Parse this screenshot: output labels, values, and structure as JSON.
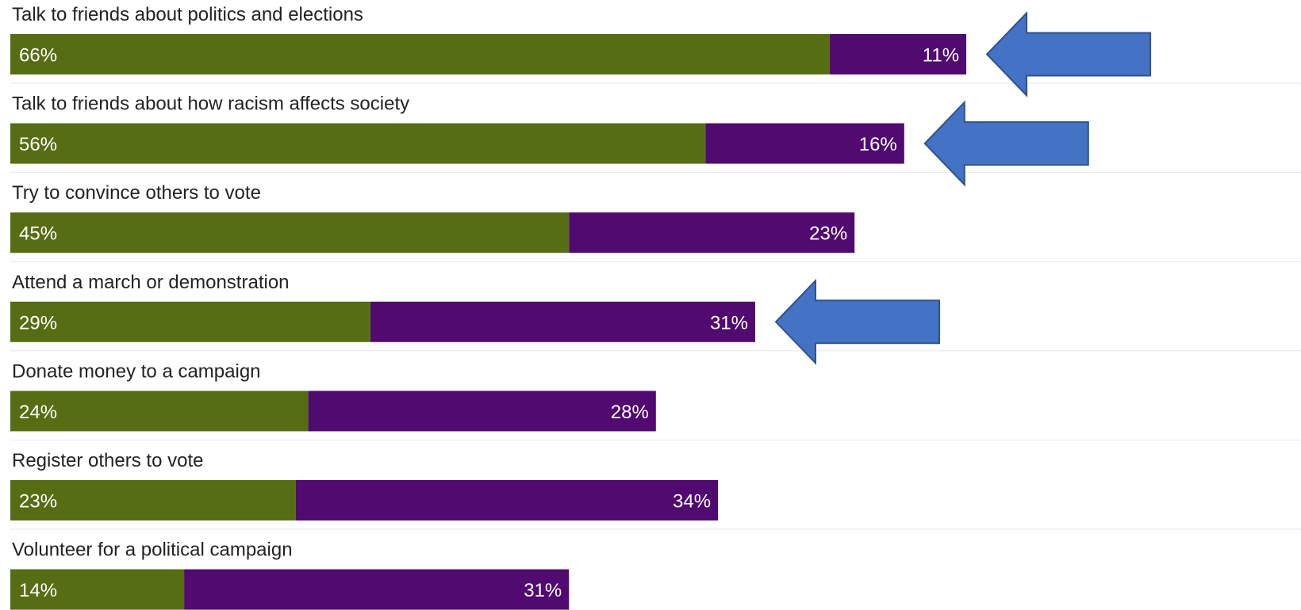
{
  "chart_data": {
    "type": "bar",
    "orientation": "horizontal",
    "stacked": true,
    "categories": [
      "Talk to friends about politics and elections",
      "Talk to friends about how racism affects society",
      "Try to convince others to vote",
      "Attend a march or demonstration",
      "Donate money to a campaign",
      "Register others to vote",
      "Volunteer for a political campaign"
    ],
    "series": [
      {
        "values": [
          66,
          56,
          45,
          29,
          24,
          23,
          14
        ],
        "labels": [
          "66%",
          "56%",
          "45%",
          "29%",
          "24%",
          "23%",
          "14%"
        ]
      },
      {
        "values": [
          11,
          16,
          23,
          31,
          28,
          34,
          31
        ],
        "labels": [
          "11%",
          "16%",
          "23%",
          "31%",
          "28%",
          "34%",
          "31%"
        ]
      }
    ],
    "xlim": [
      0,
      100
    ],
    "grid": false,
    "legend": "none",
    "highlighted_categories": [
      "Talk to friends about politics and elections",
      "Talk to friends about how racism affects society",
      "Attend a march or demonstration"
    ]
  },
  "colors": {
    "series_1": "#566d13",
    "series_2": "#500a70",
    "arrow_fill": "#4472c4",
    "arrow_stroke": "#2f528f",
    "separator": "#e6e6e6"
  },
  "icons": {
    "annotation": "left-arrow-icon"
  }
}
